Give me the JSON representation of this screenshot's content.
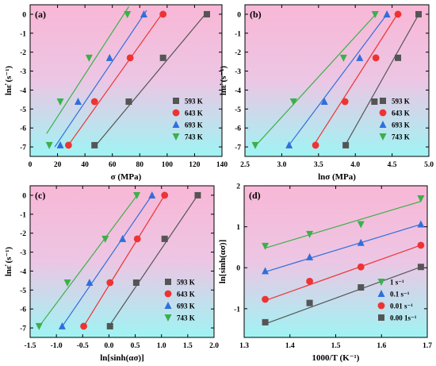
{
  "chart_data": [
    {
      "panel": "(a)",
      "type": "scatter",
      "xlabel": "σ (MPa)",
      "ylabel": "lnε̇ (s⁻¹)",
      "xlim": [
        0,
        140
      ],
      "ylim": [
        -7.5,
        0.5
      ],
      "xticks": [
        0,
        20,
        40,
        60,
        80,
        100,
        120,
        140
      ],
      "yticks": [
        -7,
        -6,
        -5,
        -4,
        -3,
        -2,
        -1,
        0
      ],
      "legend_position": "bottom-right",
      "series": [
        {
          "name": "593 K",
          "marker": "square",
          "color": "#555555",
          "x": [
            47,
            72,
            97,
            129
          ],
          "y": [
            -6.91,
            -4.61,
            -2.3,
            0
          ],
          "fit": [
            [
              47,
              -7.0
            ],
            [
              129,
              0.1
            ]
          ]
        },
        {
          "name": "643 K",
          "marker": "circle",
          "color": "#ee3333",
          "x": [
            28,
            47,
            73,
            97
          ],
          "y": [
            -6.91,
            -4.61,
            -2.3,
            0
          ],
          "fit": [
            [
              27,
              -7.0
            ],
            [
              97,
              0.1
            ]
          ]
        },
        {
          "name": "693 K",
          "marker": "triangle-up",
          "color": "#2f6fdc",
          "x": [
            22,
            35,
            58,
            83
          ],
          "y": [
            -6.91,
            -4.61,
            -2.3,
            0
          ],
          "fit": [
            [
              18,
              -7.0
            ],
            [
              85,
              0.2
            ]
          ]
        },
        {
          "name": "743 K",
          "marker": "triangle-down",
          "color": "#3cb04a",
          "x": [
            14,
            22,
            43,
            71
          ],
          "y": [
            -6.91,
            -4.61,
            -2.3,
            0
          ],
          "fit": [
            [
              12,
              -6.3
            ],
            [
              72,
              0.4
            ]
          ]
        }
      ]
    },
    {
      "panel": "(b)",
      "type": "scatter",
      "xlabel": "lnσ (MPa)",
      "ylabel": "lnε̇ (s⁻¹)",
      "xlim": [
        2.5,
        5.0
      ],
      "ylim": [
        -7.5,
        0.5
      ],
      "xticks": [
        2.5,
        3.0,
        3.5,
        4.0,
        4.5,
        5.0
      ],
      "yticks": [
        -7,
        -6,
        -5,
        -4,
        -3,
        -2,
        -1,
        0
      ],
      "legend_position": "bottom-right",
      "series": [
        {
          "name": "593 K",
          "marker": "square",
          "color": "#555555",
          "x": [
            3.87,
            4.26,
            4.58,
            4.86
          ],
          "y": [
            -6.91,
            -4.61,
            -2.3,
            0
          ],
          "fit": [
            [
              3.85,
              -7.0
            ],
            [
              4.87,
              0.05
            ]
          ]
        },
        {
          "name": "643 K",
          "marker": "circle",
          "color": "#ee3333",
          "x": [
            3.46,
            3.86,
            4.28,
            4.58
          ],
          "y": [
            -6.91,
            -4.61,
            -2.3,
            0
          ],
          "fit": [
            [
              3.42,
              -7.0
            ],
            [
              4.58,
              0.05
            ]
          ]
        },
        {
          "name": "693 K",
          "marker": "triangle-up",
          "color": "#2f6fdc",
          "x": [
            3.1,
            3.58,
            4.06,
            4.43
          ],
          "y": [
            -6.91,
            -4.61,
            -2.3,
            0
          ],
          "fit": [
            [
              3.08,
              -7.0
            ],
            [
              4.44,
              0.05
            ]
          ]
        },
        {
          "name": "743 K",
          "marker": "triangle-down",
          "color": "#3cb04a",
          "x": [
            2.64,
            3.16,
            3.84,
            4.27
          ],
          "y": [
            -6.91,
            -4.61,
            -2.3,
            0
          ],
          "fit": [
            [
              2.63,
              -7.0
            ],
            [
              4.29,
              0.05
            ]
          ]
        }
      ]
    },
    {
      "panel": "(c)",
      "type": "scatter",
      "xlabel": "ln[sinh(ασ)]",
      "ylabel": "lnε̇ (s⁻¹)",
      "xlim": [
        -1.5,
        2.0
      ],
      "ylim": [
        -7.5,
        0.5
      ],
      "xticks": [
        -1.5,
        -1.0,
        -0.5,
        0.0,
        0.5,
        1.0,
        1.5,
        2.0
      ],
      "yticks": [
        -7,
        -6,
        -5,
        -4,
        -3,
        -2,
        -1,
        0
      ],
      "legend_position": "bottom-right",
      "series": [
        {
          "name": "593 K",
          "marker": "square",
          "color": "#555555",
          "x": [
            0.02,
            0.52,
            1.06,
            1.69
          ],
          "y": [
            -6.91,
            -4.61,
            -2.3,
            0
          ],
          "fit": [
            [
              -0.02,
              -7.0
            ],
            [
              1.7,
              0.05
            ]
          ]
        },
        {
          "name": "643 K",
          "marker": "circle",
          "color": "#ee3333",
          "x": [
            -0.48,
            0.02,
            0.54,
            1.06
          ],
          "y": [
            -6.91,
            -4.61,
            -2.3,
            0
          ],
          "fit": [
            [
              -0.5,
              -7.0
            ],
            [
              1.07,
              0.05
            ]
          ]
        },
        {
          "name": "693 K",
          "marker": "triangle-up",
          "color": "#2f6fdc",
          "x": [
            -0.89,
            -0.37,
            0.26,
            0.82
          ],
          "y": [
            -6.91,
            -4.61,
            -2.3,
            0
          ],
          "fit": [
            [
              -0.91,
              -7.0
            ],
            [
              0.83,
              0.05
            ]
          ]
        },
        {
          "name": "743 K",
          "marker": "triangle-down",
          "color": "#3cb04a",
          "x": [
            -1.33,
            -0.79,
            -0.07,
            0.53
          ],
          "y": [
            -6.91,
            -4.61,
            -2.3,
            0
          ],
          "fit": [
            [
              -1.35,
              -7.0
            ],
            [
              0.55,
              0.05
            ]
          ]
        }
      ]
    },
    {
      "panel": "(d)",
      "type": "scatter",
      "xlabel": "1000/T (K⁻¹)",
      "ylabel": "ln[sinh(ασ)]",
      "xlim": [
        1.3,
        1.7
      ],
      "ylim": [
        -1.7,
        2.0
      ],
      "xticks": [
        1.3,
        1.4,
        1.5,
        1.6,
        1.7
      ],
      "yticks": [
        -1,
        0,
        1,
        2
      ],
      "legend_position": "bottom-right",
      "series": [
        {
          "name": "1 s⁻¹",
          "marker": "triangle-down",
          "color": "#3cb04a",
          "x": [
            1.346,
            1.443,
            1.555,
            1.686
          ],
          "y": [
            0.53,
            0.82,
            1.06,
            1.69
          ],
          "fit": [
            [
              1.346,
              0.48
            ],
            [
              1.686,
              1.62
            ]
          ]
        },
        {
          "name": "0.1 s⁻¹",
          "marker": "triangle-up",
          "color": "#2f6fdc",
          "x": [
            1.346,
            1.443,
            1.555,
            1.686
          ],
          "y": [
            -0.08,
            0.26,
            0.61,
            1.06
          ],
          "fit": [
            [
              1.346,
              -0.1
            ],
            [
              1.686,
              1.06
            ]
          ]
        },
        {
          "name": "0.01 s⁻¹",
          "marker": "circle",
          "color": "#ee3333",
          "x": [
            1.346,
            1.443,
            1.555,
            1.686
          ],
          "y": [
            -0.77,
            -0.33,
            0.02,
            0.55
          ],
          "fit": [
            [
              1.346,
              -0.8
            ],
            [
              1.686,
              0.55
            ]
          ]
        },
        {
          "name": "0.00 1s⁻¹",
          "marker": "square",
          "color": "#555555",
          "x": [
            1.346,
            1.443,
            1.555,
            1.686
          ],
          "y": [
            -1.33,
            -0.86,
            -0.48,
            0.02
          ],
          "fit": [
            [
              1.346,
              -1.37
            ],
            [
              1.686,
              0.02
            ]
          ]
        }
      ]
    }
  ]
}
